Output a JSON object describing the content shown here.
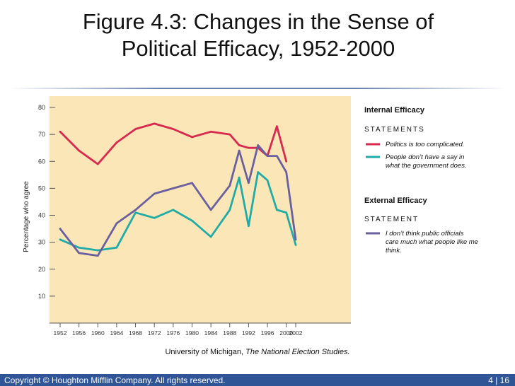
{
  "slide": {
    "title_line1": "Figure 4.3: Changes in the Sense of",
    "title_line2": "Political Efficacy, 1952-2000",
    "credit_prefix": "University of Michigan, ",
    "credit_source": "The National Election Studies.",
    "copyright": "Copyright © Houghton Mifflin Company. All rights reserved.",
    "page_number": "4 | 16"
  },
  "colors": {
    "plot_background": "#fbe6b8",
    "politics_complicated": "#d8294e",
    "no_say": "#21aba6",
    "officials_dont_care": "#6a5f9f",
    "footer": "#2f5596"
  },
  "chart_data": {
    "type": "line",
    "title": "",
    "xlabel": "",
    "ylabel": "Percentage who agree",
    "x": [
      1952,
      1956,
      1960,
      1964,
      1968,
      1972,
      1976,
      1980,
      1984,
      1988,
      1990,
      1992,
      1994,
      1996,
      1998,
      2000,
      2002
    ],
    "x_ticks": [
      1952,
      1956,
      1960,
      1964,
      1968,
      1972,
      1976,
      1980,
      1984,
      1988,
      1992,
      1996,
      2000,
      2002
    ],
    "y_ticks": [
      10,
      20,
      30,
      40,
      50,
      60,
      70,
      80
    ],
    "ylim": [
      0,
      80
    ],
    "legend": {
      "internal_heading": "Internal Efficacy",
      "internal_statements_label": "STATEMENTS",
      "external_heading": "External Efficacy",
      "external_statement_label": "STATEMENT"
    },
    "series": [
      {
        "name": "Politics is too complicated.",
        "color_key": "politics_complicated",
        "x": [
          1952,
          1956,
          1960,
          1964,
          1968,
          1972,
          1976,
          1980,
          1984,
          1988,
          1990,
          1992,
          1994,
          1996,
          1998,
          2000
        ],
        "values": [
          71,
          64,
          59,
          67,
          72,
          74,
          72,
          69,
          71,
          70,
          66,
          65,
          65,
          62,
          73,
          60
        ]
      },
      {
        "name": "People don’t have a say in what the government does.",
        "color_key": "no_say",
        "x": [
          1952,
          1956,
          1960,
          1964,
          1968,
          1972,
          1976,
          1980,
          1984,
          1988,
          1990,
          1992,
          1994,
          1996,
          1998,
          2000,
          2002
        ],
        "values": [
          31,
          28,
          27,
          28,
          41,
          39,
          42,
          38,
          32,
          42,
          54,
          36,
          56,
          53,
          42,
          41,
          29
        ]
      },
      {
        "name": "I don’t think public officials care much what people like me think.",
        "color_key": "officials_dont_care",
        "x": [
          1952,
          1956,
          1960,
          1964,
          1968,
          1972,
          1976,
          1980,
          1984,
          1988,
          1990,
          1992,
          1994,
          1996,
          1998,
          2000,
          2002
        ],
        "values": [
          35,
          26,
          25,
          37,
          42,
          48,
          50,
          52,
          42,
          51,
          64,
          52,
          66,
          62,
          62,
          56,
          31
        ]
      }
    ]
  }
}
